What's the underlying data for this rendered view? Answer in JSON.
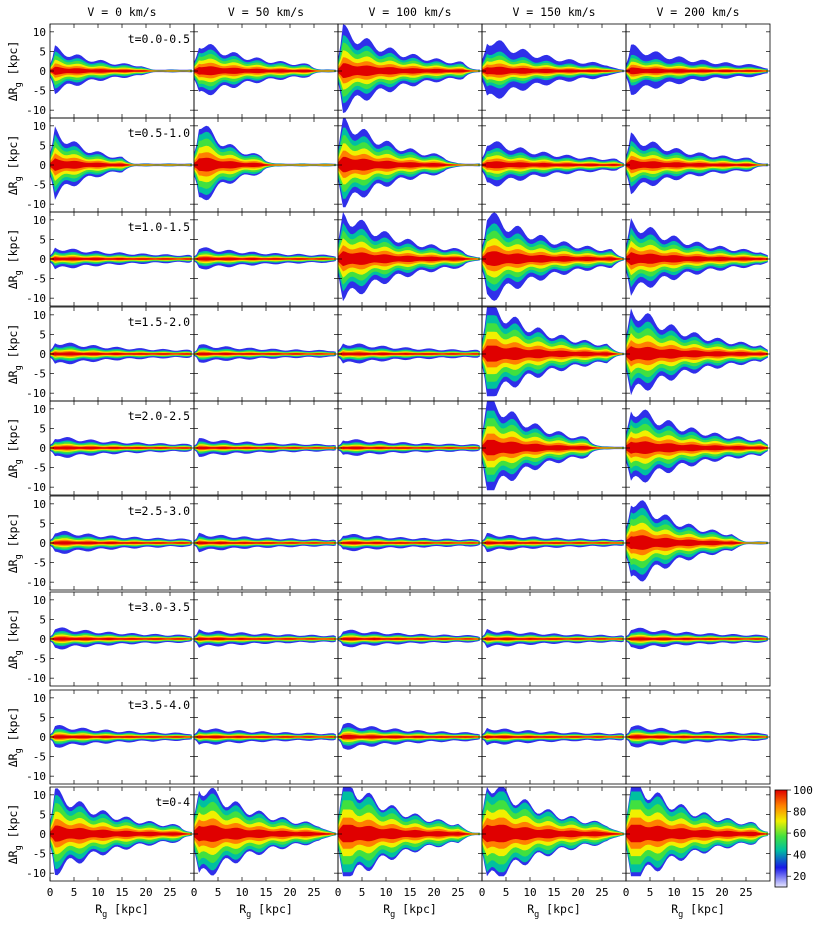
{
  "chart_data": {
    "type": "heatmap",
    "layout": "grid of 9 rows x 5 columns of 2D density panels",
    "columns": [
      "V = 0 km/s",
      "V = 50 km/s",
      "V = 100 km/s",
      "V = 150 km/s",
      "V = 200 km/s"
    ],
    "rows": [
      "t=0.0-0.5",
      "t=0.5-1.0",
      "t=1.0-1.5",
      "t=1.5-2.0",
      "t=2.0-2.5",
      "t=2.5-3.0",
      "t=3.0-3.5",
      "t=3.5-4.0",
      "t=0-4"
    ],
    "xlabel_main": "R",
    "xlabel_sub": "g",
    "xlabel_unit": " [kpc]",
    "ylabel_main": "ΔR",
    "ylabel_sub": "g",
    "ylabel_unit": " [kpc]",
    "xlim": [
      0,
      30
    ],
    "ylim": [
      -12,
      12
    ],
    "xticks": [
      "0",
      "5",
      "10",
      "15",
      "20",
      "25"
    ],
    "yticks": [
      "10",
      "5",
      "0",
      "-5",
      "-10"
    ],
    "colorbar": {
      "ticks": [
        "100",
        "80",
        "60",
        "40",
        "20"
      ],
      "range": [
        10,
        100
      ],
      "colors": [
        "#e8e8ff",
        "#1818e8",
        "#00c0a0",
        "#40e040",
        "#f0f000",
        "#ff8000",
        "#e00000"
      ]
    },
    "panels": [
      [
        {
          "amp": 4.5,
          "len": 19,
          "core": 0.55
        },
        {
          "amp": 6,
          "len": 24,
          "core": 0.6
        },
        {
          "amp": 9,
          "len": 26,
          "core": 0.55
        },
        {
          "amp": 7,
          "len": 26,
          "core": 0.3
        },
        {
          "amp": 5,
          "len": 28,
          "core": 0.25
        }
      ],
      [
        {
          "amp": 7,
          "len": 15,
          "core": 0.6
        },
        {
          "amp": 9,
          "len": 14,
          "core": 0.7
        },
        {
          "amp": 10,
          "len": 22,
          "core": 0.6
        },
        {
          "amp": 5,
          "len": 28,
          "core": 0.45
        },
        {
          "amp": 6,
          "len": 26,
          "core": 0.5
        }
      ],
      [
        {
          "amp": 2,
          "len": 29,
          "core": 0.4
        },
        {
          "amp": 2,
          "len": 29,
          "core": 0.4
        },
        {
          "amp": 10,
          "len": 26,
          "core": 0.55
        },
        {
          "amp": 10,
          "len": 27,
          "core": 0.55
        },
        {
          "amp": 8,
          "len": 28,
          "core": 0.55
        }
      ],
      [
        {
          "amp": 2.2,
          "len": 29,
          "core": 0.4
        },
        {
          "amp": 1.5,
          "len": 29,
          "core": 0.35
        },
        {
          "amp": 2,
          "len": 29,
          "core": 0.35
        },
        {
          "amp": 11,
          "len": 26,
          "core": 0.65
        },
        {
          "amp": 10,
          "len": 28,
          "core": 0.6
        }
      ],
      [
        {
          "amp": 2,
          "len": 29,
          "core": 0.4
        },
        {
          "amp": 1.5,
          "len": 29,
          "core": 0.35
        },
        {
          "amp": 1.5,
          "len": 29,
          "core": 0.35
        },
        {
          "amp": 11,
          "len": 22,
          "core": 0.6
        },
        {
          "amp": 9,
          "len": 28,
          "core": 0.6
        }
      ],
      [
        {
          "amp": 2.2,
          "len": 29,
          "core": 0.4
        },
        {
          "amp": 1.5,
          "len": 29,
          "core": 0.35
        },
        {
          "amp": 1.5,
          "len": 29,
          "core": 0.35
        },
        {
          "amp": 1.5,
          "len": 29,
          "core": 0.35
        },
        {
          "amp": 10,
          "len": 22,
          "core": 0.65
        }
      ],
      [
        {
          "amp": 2,
          "len": 29,
          "core": 0.4
        },
        {
          "amp": 1.5,
          "len": 29,
          "core": 0.35
        },
        {
          "amp": 1.5,
          "len": 29,
          "core": 0.35
        },
        {
          "amp": 1.5,
          "len": 29,
          "core": 0.35
        },
        {
          "amp": 2,
          "len": 29,
          "core": 0.35
        }
      ],
      [
        {
          "amp": 2,
          "len": 29,
          "core": 0.4
        },
        {
          "amp": 1.5,
          "len": 29,
          "core": 0.35
        },
        {
          "amp": 2.5,
          "len": 29,
          "core": 0.4
        },
        {
          "amp": 1.5,
          "len": 29,
          "core": 0.35
        },
        {
          "amp": 2,
          "len": 29,
          "core": 0.35
        }
      ],
      [
        {
          "amp": 9,
          "len": 27,
          "core": 0.7
        },
        {
          "amp": 11,
          "len": 26,
          "core": 0.75
        },
        {
          "amp": 12,
          "len": 25,
          "core": 0.8
        },
        {
          "amp": 12,
          "len": 26,
          "core": 0.8
        },
        {
          "amp": 12,
          "len": 27,
          "core": 0.8
        }
      ]
    ]
  }
}
